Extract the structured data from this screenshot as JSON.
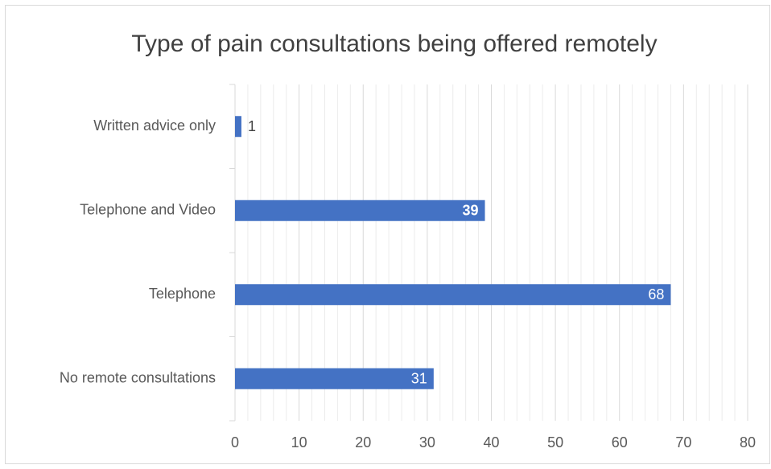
{
  "chart_data": {
    "type": "bar",
    "orientation": "horizontal",
    "title": "Type of pain consultations being offered remotely",
    "categories": [
      "Written advice only",
      "Telephone and Video",
      "Telephone",
      "No remote consultations"
    ],
    "values": [
      1,
      39,
      68,
      31
    ],
    "color": "#4472c4",
    "xlim": [
      0,
      80
    ],
    "xticks": [
      0,
      10,
      20,
      30,
      40,
      50,
      60,
      70,
      80
    ],
    "grid": true,
    "minor_grid": true
  }
}
